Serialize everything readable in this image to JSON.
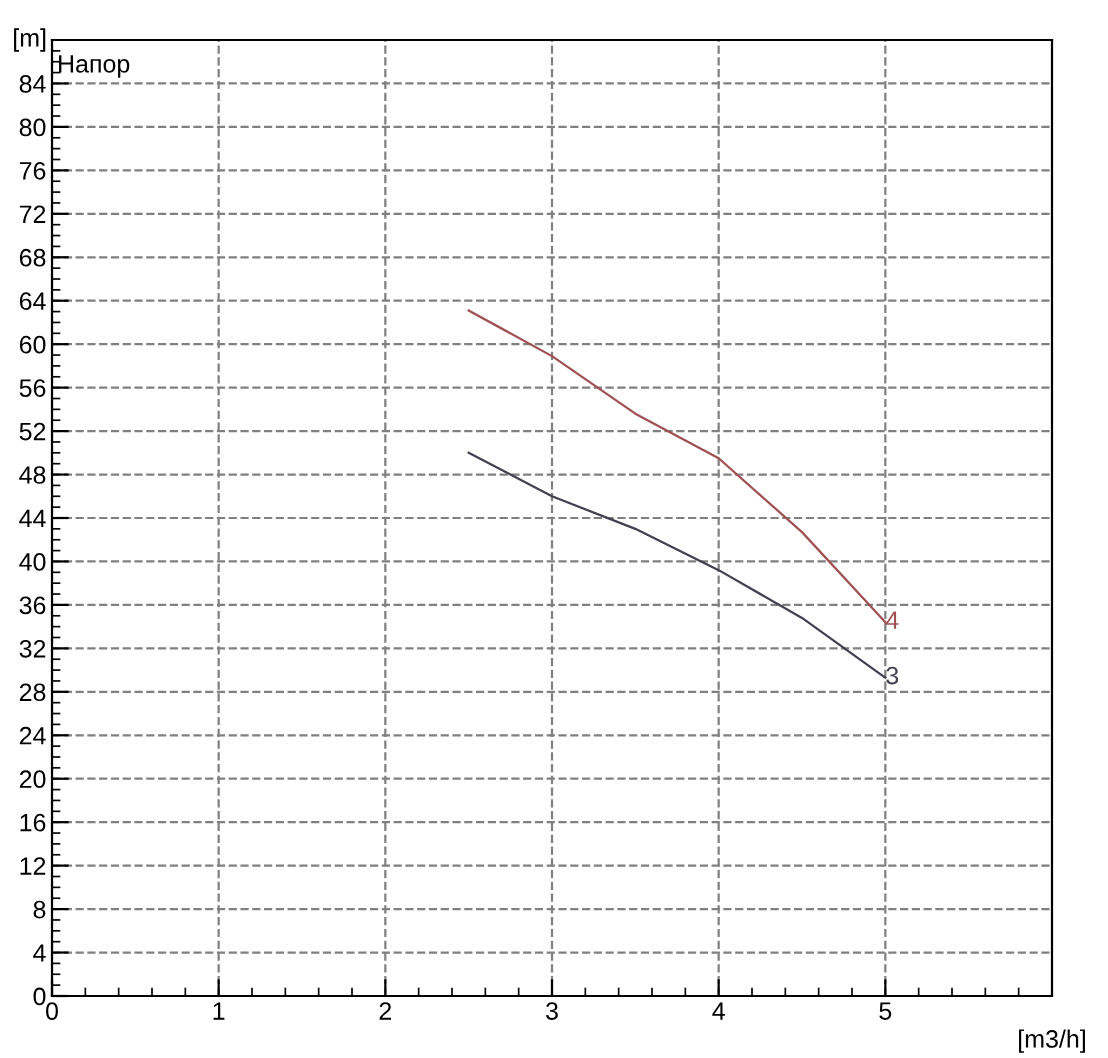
{
  "chart_data": {
    "type": "line",
    "xlabel": "[m3/h]",
    "ylabel": "[m]",
    "annotations": [
      "Напор"
    ],
    "series": [
      {
        "name": "4",
        "color": "#a05050",
        "x": [
          2.5,
          3,
          3.5,
          4,
          4.5,
          5
        ],
        "values": [
          63.1,
          58.9,
          53.6,
          49.5,
          42.7,
          34.4
        ]
      },
      {
        "name": "3",
        "color": "#404050",
        "x": [
          2.5,
          3,
          3.5,
          4,
          4.5,
          5
        ],
        "values": [
          50.0,
          46.0,
          43.0,
          39.2,
          34.8,
          29.3
        ]
      }
    ],
    "xlim": [
      0,
      6
    ],
    "xticks": [
      0,
      1,
      2,
      3,
      4,
      5
    ],
    "ylim": [
      0,
      88
    ],
    "yticks": [
      0,
      4,
      8,
      12,
      16,
      20,
      24,
      28,
      32,
      36,
      40,
      44,
      48,
      52,
      56,
      60,
      64,
      68,
      72,
      76,
      80,
      84
    ],
    "grid": true,
    "legend": false,
    "marker": "none",
    "line_style": "solid"
  }
}
